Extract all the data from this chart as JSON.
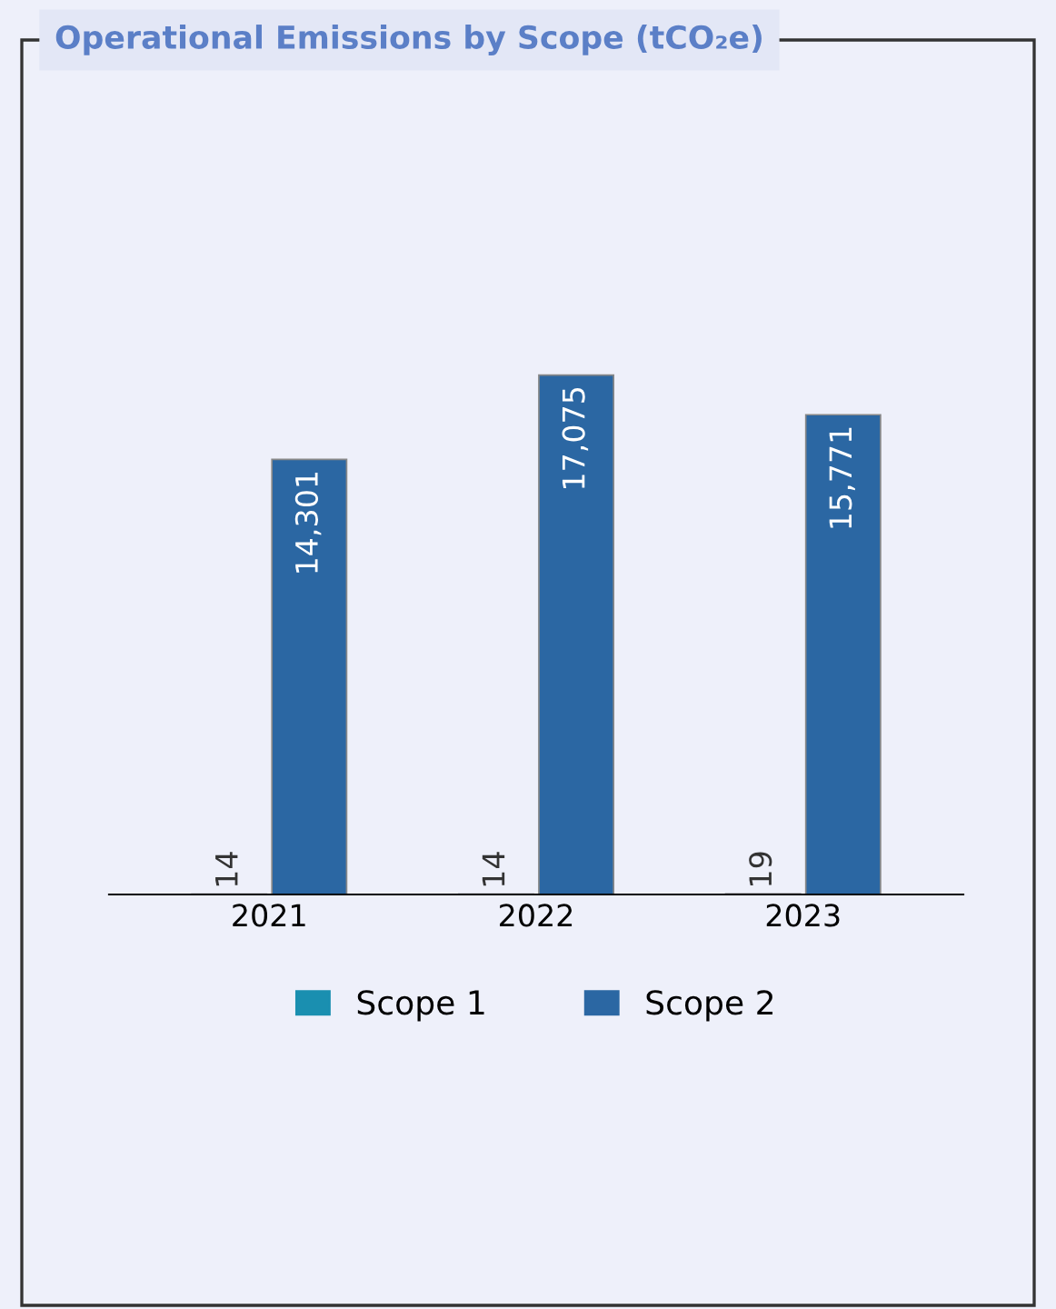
{
  "chart_data": {
    "type": "bar",
    "title": "Operational Emissions by Scope (tCO₂e)",
    "categories": [
      "2021",
      "2022",
      "2023"
    ],
    "series": [
      {
        "name": "Scope 1",
        "color": "#1a8fb0",
        "values": [
          14,
          14,
          19
        ],
        "value_labels": [
          "14",
          "14",
          "19"
        ]
      },
      {
        "name": "Scope 2",
        "color": "#2b67a3",
        "values": [
          14301,
          17075,
          15771
        ],
        "value_labels": [
          "14,301",
          "17,075",
          "15,771"
        ]
      }
    ],
    "legend": "bottom",
    "grid": false
  }
}
